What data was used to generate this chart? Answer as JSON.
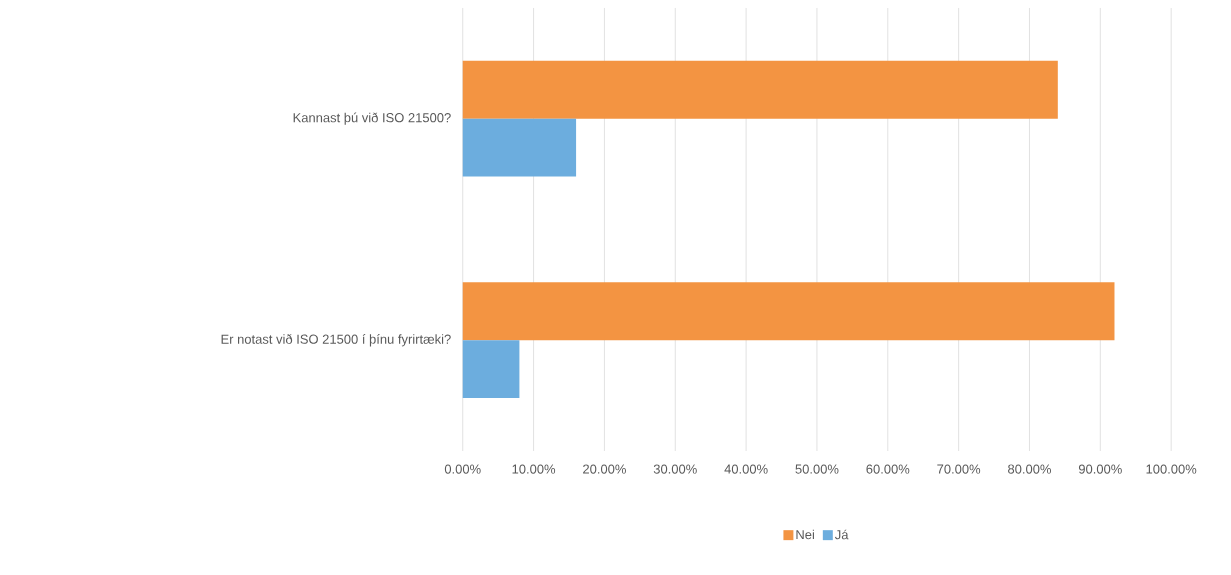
{
  "chart_data": {
    "type": "bar",
    "orientation": "horizontal",
    "categories": [
      "Kannast þú við ISO 21500?",
      "Er notast við ISO 21500 í þínu fyrirtæki?"
    ],
    "series": [
      {
        "name": "Nei",
        "color": "#f39442",
        "values": [
          84,
          92
        ]
      },
      {
        "name": "Já",
        "color": "#6cadde",
        "values": [
          16,
          8
        ]
      }
    ],
    "xlim": [
      0,
      100
    ],
    "xticks": [
      {
        "value": 0,
        "label": "0.00%"
      },
      {
        "value": 10,
        "label": "10.00%"
      },
      {
        "value": 20,
        "label": "20.00%"
      },
      {
        "value": 30,
        "label": "30.00%"
      },
      {
        "value": 40,
        "label": "40.00%"
      },
      {
        "value": 50,
        "label": "50.00%"
      },
      {
        "value": 60,
        "label": "60.00%"
      },
      {
        "value": 70,
        "label": "70.00%"
      },
      {
        "value": 80,
        "label": "80.00%"
      },
      {
        "value": 90,
        "label": "90.00%"
      },
      {
        "value": 100,
        "label": "100.00%"
      }
    ],
    "grid": "x",
    "legend": "bottom"
  }
}
